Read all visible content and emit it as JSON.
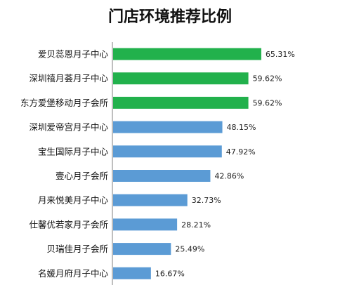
{
  "chart_data": {
    "type": "bar",
    "orientation": "horizontal",
    "title": "门店环境推荐比例",
    "categories": [
      "爱贝蕊恩月子中心",
      "深圳禧月荟月子中心",
      "东方爱堡移动月子会所",
      "深圳爱帝宫月子中心",
      "宝生国际月子中心",
      "壹心月子会所",
      "月来悦美月子中心",
      "仕馨优若家月子会所",
      "贝瑞佳月子会所",
      "名媛月府月子中心"
    ],
    "values": [
      65.31,
      59.62,
      59.62,
      48.15,
      47.92,
      42.86,
      32.73,
      28.21,
      25.49,
      16.67
    ],
    "value_labels": [
      "65.31%",
      "59.62%",
      "59.62%",
      "48.15%",
      "47.92%",
      "42.86%",
      "32.73%",
      "28.21%",
      "25.49%",
      "16.67%"
    ],
    "bar_colors": [
      "#22b14c",
      "#22b14c",
      "#22b14c",
      "#5b9bd5",
      "#5b9bd5",
      "#5b9bd5",
      "#5b9bd5",
      "#5b9bd5",
      "#5b9bd5",
      "#5b9bd5"
    ],
    "xlim": [
      0,
      100
    ],
    "xlabel": "",
    "ylabel": "",
    "grid": false,
    "legend": "none"
  }
}
